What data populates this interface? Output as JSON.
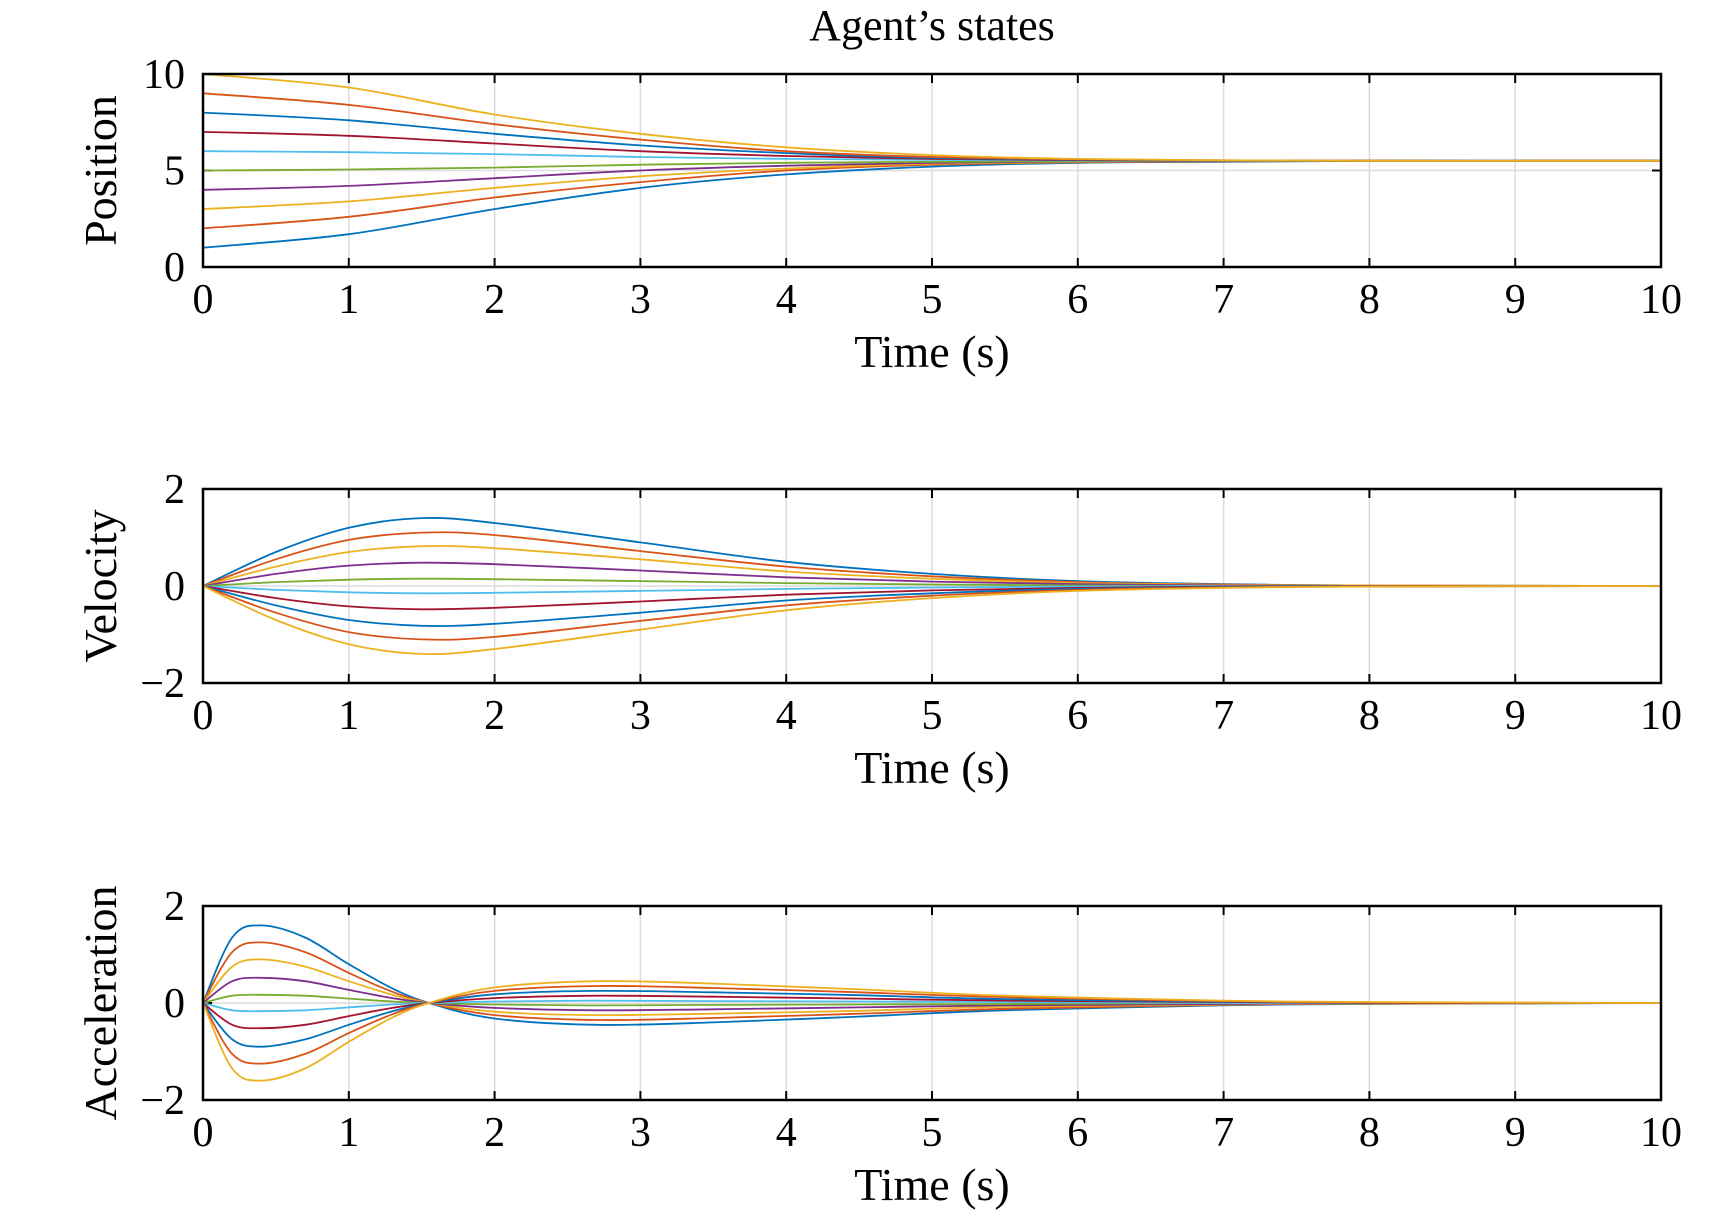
{
  "title": "Agent’s states",
  "palette": [
    "#0072BD",
    "#D95319",
    "#EDB120",
    "#7E2F8E",
    "#77AC30",
    "#4DBEEE",
    "#A2142F"
  ],
  "chart_data": [
    {
      "type": "line",
      "title": "Agent’s states",
      "xlabel": "Time (s)",
      "ylabel": "Position",
      "xlim": [
        0,
        10
      ],
      "ylim": [
        0,
        10
      ],
      "xticks": [
        "0",
        "1",
        "2",
        "3",
        "4",
        "5",
        "6",
        "7",
        "8",
        "9",
        "10"
      ],
      "yticks": [
        "0",
        "5",
        "10"
      ],
      "grid": true,
      "x": [
        0,
        1,
        2,
        3,
        4,
        5,
        6,
        7,
        8,
        10
      ],
      "series": [
        {
          "values": [
            1,
            1.7,
            3.0,
            4.1,
            4.8,
            5.2,
            5.4,
            5.45,
            5.5,
            5.5
          ]
        },
        {
          "values": [
            2,
            2.6,
            3.6,
            4.4,
            5.0,
            5.3,
            5.42,
            5.47,
            5.5,
            5.5
          ]
        },
        {
          "values": [
            3,
            3.4,
            4.1,
            4.7,
            5.1,
            5.35,
            5.44,
            5.48,
            5.5,
            5.5
          ]
        },
        {
          "values": [
            4,
            4.2,
            4.6,
            5.0,
            5.25,
            5.4,
            5.46,
            5.49,
            5.5,
            5.5
          ]
        },
        {
          "values": [
            5,
            5.05,
            5.15,
            5.3,
            5.4,
            5.45,
            5.48,
            5.5,
            5.5,
            5.5
          ]
        },
        {
          "values": [
            6,
            5.95,
            5.85,
            5.7,
            5.6,
            5.55,
            5.52,
            5.5,
            5.5,
            5.5
          ]
        },
        {
          "values": [
            7,
            6.8,
            6.4,
            6.0,
            5.75,
            5.6,
            5.54,
            5.51,
            5.5,
            5.5
          ]
        },
        {
          "values": [
            8,
            7.6,
            6.9,
            6.3,
            5.9,
            5.65,
            5.56,
            5.52,
            5.5,
            5.5
          ]
        },
        {
          "values": [
            9,
            8.4,
            7.4,
            6.6,
            6.0,
            5.7,
            5.58,
            5.53,
            5.5,
            5.5
          ]
        },
        {
          "values": [
            10,
            9.3,
            7.9,
            6.9,
            6.2,
            5.8,
            5.6,
            5.53,
            5.5,
            5.5
          ]
        }
      ]
    },
    {
      "type": "line",
      "xlabel": "Time (s)",
      "ylabel": "Velocity",
      "xlim": [
        0,
        10
      ],
      "ylim": [
        -2,
        2
      ],
      "xticks": [
        "0",
        "1",
        "2",
        "3",
        "4",
        "5",
        "6",
        "7",
        "8",
        "9",
        "10"
      ],
      "yticks": [
        "−2",
        "0",
        "2"
      ],
      "grid": true,
      "x": [
        0,
        0.5,
        1,
        1.5,
        2,
        3,
        4,
        5,
        6,
        7,
        8,
        10
      ],
      "series": [
        {
          "values": [
            0,
            0.7,
            1.2,
            1.4,
            1.3,
            0.9,
            0.5,
            0.25,
            0.1,
            0.04,
            0.01,
            0
          ]
        },
        {
          "values": [
            0,
            0.55,
            0.95,
            1.1,
            1.05,
            0.72,
            0.4,
            0.2,
            0.08,
            0.03,
            0.01,
            0
          ]
        },
        {
          "values": [
            0,
            0.4,
            0.7,
            0.82,
            0.78,
            0.55,
            0.3,
            0.15,
            0.06,
            0.02,
            0.01,
            0
          ]
        },
        {
          "values": [
            0,
            0.25,
            0.42,
            0.48,
            0.45,
            0.32,
            0.18,
            0.09,
            0.04,
            0.01,
            0,
            0
          ]
        },
        {
          "values": [
            0,
            0.08,
            0.13,
            0.15,
            0.14,
            0.1,
            0.06,
            0.03,
            0.01,
            0,
            0,
            0
          ]
        },
        {
          "values": [
            0,
            -0.08,
            -0.13,
            -0.15,
            -0.14,
            -0.1,
            -0.06,
            -0.03,
            -0.01,
            0,
            0,
            0
          ]
        },
        {
          "values": [
            0,
            -0.25,
            -0.42,
            -0.48,
            -0.45,
            -0.32,
            -0.18,
            -0.09,
            -0.04,
            -0.01,
            0,
            0
          ]
        },
        {
          "values": [
            0,
            -0.4,
            -0.7,
            -0.82,
            -0.78,
            -0.55,
            -0.3,
            -0.15,
            -0.06,
            -0.02,
            -0.01,
            0
          ]
        },
        {
          "values": [
            0,
            -0.55,
            -0.95,
            -1.1,
            -1.05,
            -0.72,
            -0.4,
            -0.2,
            -0.08,
            -0.03,
            -0.01,
            0
          ]
        },
        {
          "values": [
            0,
            -0.7,
            -1.2,
            -1.4,
            -1.3,
            -0.9,
            -0.5,
            -0.25,
            -0.1,
            -0.04,
            -0.01,
            0
          ]
        }
      ]
    },
    {
      "type": "line",
      "xlabel": "Time (s)",
      "ylabel": "Acceleration",
      "xlim": [
        0,
        10
      ],
      "ylim": [
        -2,
        2
      ],
      "xticks": [
        "0",
        "1",
        "2",
        "3",
        "4",
        "5",
        "6",
        "7",
        "8",
        "9",
        "10"
      ],
      "yticks": [
        "−2",
        "0",
        "2"
      ],
      "grid": true,
      "x": [
        0,
        0.2,
        0.4,
        0.7,
        1,
        1.3,
        1.55,
        2,
        2.7,
        3.5,
        4.5,
        5.5,
        7,
        8,
        10
      ],
      "series": [
        {
          "values": [
            0,
            1.35,
            1.6,
            1.35,
            0.8,
            0.3,
            0,
            -0.32,
            -0.45,
            -0.4,
            -0.28,
            -0.15,
            -0.05,
            -0.02,
            0
          ]
        },
        {
          "values": [
            0,
            1.05,
            1.25,
            1.05,
            0.62,
            0.23,
            0,
            -0.25,
            -0.35,
            -0.31,
            -0.22,
            -0.12,
            -0.04,
            -0.01,
            0
          ]
        },
        {
          "values": [
            0,
            0.75,
            0.9,
            0.75,
            0.45,
            0.17,
            0,
            -0.18,
            -0.25,
            -0.22,
            -0.16,
            -0.08,
            -0.03,
            -0.01,
            0
          ]
        },
        {
          "values": [
            0,
            0.45,
            0.52,
            0.45,
            0.27,
            0.1,
            0,
            -0.1,
            -0.15,
            -0.13,
            -0.09,
            -0.05,
            -0.02,
            0,
            0
          ]
        },
        {
          "values": [
            0,
            0.15,
            0.17,
            0.15,
            0.09,
            0.03,
            0,
            -0.03,
            -0.05,
            -0.04,
            -0.03,
            -0.02,
            0,
            0,
            0
          ]
        },
        {
          "values": [
            0,
            -0.15,
            -0.17,
            -0.15,
            -0.09,
            -0.03,
            0,
            0.03,
            0.05,
            0.04,
            0.03,
            0.02,
            0,
            0,
            0
          ]
        },
        {
          "values": [
            0,
            -0.45,
            -0.52,
            -0.45,
            -0.27,
            -0.1,
            0,
            0.1,
            0.15,
            0.13,
            0.09,
            0.05,
            0.02,
            0,
            0
          ]
        },
        {
          "values": [
            0,
            -0.75,
            -0.9,
            -0.75,
            -0.45,
            -0.17,
            0,
            0.18,
            0.25,
            0.22,
            0.16,
            0.08,
            0.03,
            0.01,
            0
          ]
        },
        {
          "values": [
            0,
            -1.05,
            -1.25,
            -1.05,
            -0.62,
            -0.23,
            0,
            0.25,
            0.35,
            0.31,
            0.22,
            0.12,
            0.04,
            0.01,
            0
          ]
        },
        {
          "values": [
            0,
            -1.35,
            -1.6,
            -1.35,
            -0.8,
            -0.3,
            0,
            0.32,
            0.45,
            0.4,
            0.28,
            0.15,
            0.05,
            0.02,
            0
          ]
        }
      ]
    }
  ]
}
